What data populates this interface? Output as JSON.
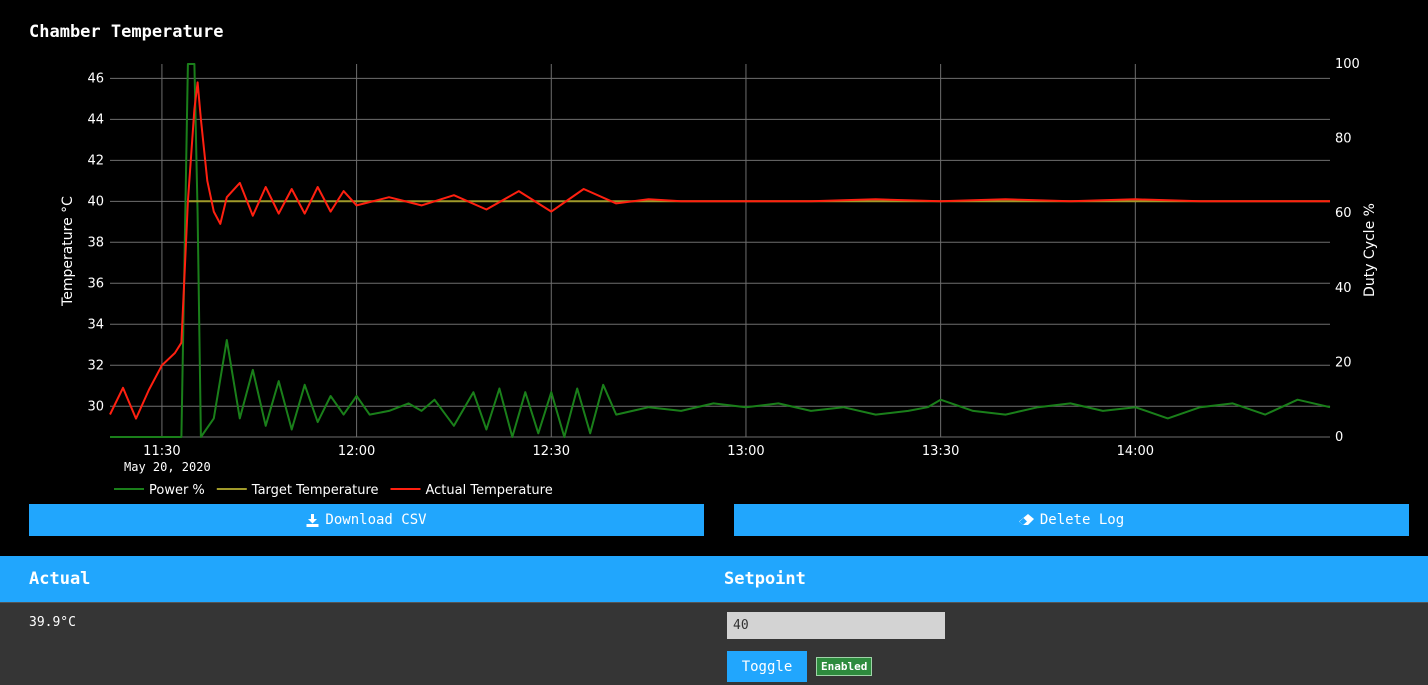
{
  "page": {
    "title": "Chamber Temperature"
  },
  "chart_data": {
    "type": "line",
    "xlabel": "",
    "ylabel": "Temperature °C",
    "y2label": "Duty Cycle %",
    "date_label": "May 20, 2020",
    "x_range": [
      "11:22",
      "14:30"
    ],
    "ylim": [
      28.5,
      46.7
    ],
    "y2lim": [
      0,
      100
    ],
    "x_ticks": [
      "11:30",
      "12:00",
      "12:30",
      "13:00",
      "13:30",
      "14:00"
    ],
    "y_ticks": [
      30,
      32,
      34,
      36,
      38,
      40,
      42,
      44,
      46
    ],
    "y2_ticks": [
      0,
      20,
      40,
      60,
      80,
      100
    ],
    "grid": true,
    "legend_position": "bottom-left",
    "series": [
      {
        "name": "Power %",
        "color": "#1a7f1a",
        "axis": "y2",
        "x": [
          "11:22",
          "11:30",
          "11:33",
          "11:34",
          "11:34.5",
          "11:35",
          "11:35.5",
          "11:36",
          "11:38",
          "11:40",
          "11:42",
          "11:44",
          "11:46",
          "11:48",
          "11:50",
          "11:52",
          "11:54",
          "11:56",
          "11:58",
          "12:00",
          "12:02",
          "12:05",
          "12:08",
          "12:10",
          "12:12",
          "12:15",
          "12:18",
          "12:20",
          "12:22",
          "12:24",
          "12:26",
          "12:28",
          "12:30",
          "12:32",
          "12:34",
          "12:36",
          "12:38",
          "12:40",
          "12:45",
          "12:50",
          "12:55",
          "13:00",
          "13:05",
          "13:10",
          "13:15",
          "13:20",
          "13:25",
          "13:28",
          "13:30",
          "13:35",
          "13:40",
          "13:45",
          "13:50",
          "13:55",
          "14:00",
          "14:05",
          "14:10",
          "14:15",
          "14:20",
          "14:25",
          "14:30"
        ],
        "values": [
          0,
          0,
          0,
          100,
          100,
          100,
          60,
          0,
          5,
          26,
          5,
          18,
          3,
          15,
          2,
          14,
          4,
          11,
          6,
          11,
          6,
          7,
          9,
          7,
          10,
          3,
          12,
          2,
          13,
          0,
          12,
          1,
          12,
          0,
          13,
          1,
          14,
          6,
          8,
          7,
          9,
          8,
          9,
          7,
          8,
          6,
          7,
          8,
          10,
          7,
          6,
          8,
          9,
          7,
          8,
          5,
          8,
          9,
          6,
          10,
          8
        ]
      },
      {
        "name": "Target Temperature",
        "color": "#a09a2a",
        "axis": "y",
        "x": [
          "11:34",
          "14:30"
        ],
        "values": [
          40,
          40
        ]
      },
      {
        "name": "Actual Temperature",
        "color": "#ff2010",
        "axis": "y",
        "x": [
          "11:22",
          "11:24",
          "11:26",
          "11:28",
          "11:30",
          "11:32",
          "11:33",
          "11:34",
          "11:35",
          "11:35.5",
          "11:36",
          "11:37",
          "11:38",
          "11:39",
          "11:40",
          "11:42",
          "11:44",
          "11:46",
          "11:48",
          "11:50",
          "11:52",
          "11:54",
          "11:56",
          "11:58",
          "12:00",
          "12:05",
          "12:10",
          "12:15",
          "12:20",
          "12:25",
          "12:30",
          "12:35",
          "12:40",
          "12:45",
          "12:50",
          "13:00",
          "13:10",
          "13:20",
          "13:30",
          "13:40",
          "13:50",
          "14:00",
          "14:10",
          "14:20",
          "14:30"
        ],
        "values": [
          29.6,
          30.9,
          29.4,
          30.8,
          32.0,
          32.6,
          33.1,
          40,
          44.5,
          45.8,
          44,
          41,
          39.5,
          38.9,
          40.2,
          40.9,
          39.3,
          40.7,
          39.4,
          40.6,
          39.4,
          40.7,
          39.5,
          40.5,
          39.8,
          40.2,
          39.8,
          40.3,
          39.6,
          40.5,
          39.5,
          40.6,
          39.9,
          40.1,
          40.0,
          40.0,
          40.0,
          40.1,
          40.0,
          40.1,
          40.0,
          40.1,
          40.0,
          40.0,
          40.0
        ]
      }
    ]
  },
  "buttons": {
    "download": "Download CSV",
    "delete": "Delete Log"
  },
  "panel": {
    "actual_heading": "Actual",
    "setpoint_heading": "Setpoint",
    "actual_value": "39.9°C",
    "setpoint_value": "40",
    "toggle_label": "Toggle",
    "status_label": "Enabled"
  }
}
